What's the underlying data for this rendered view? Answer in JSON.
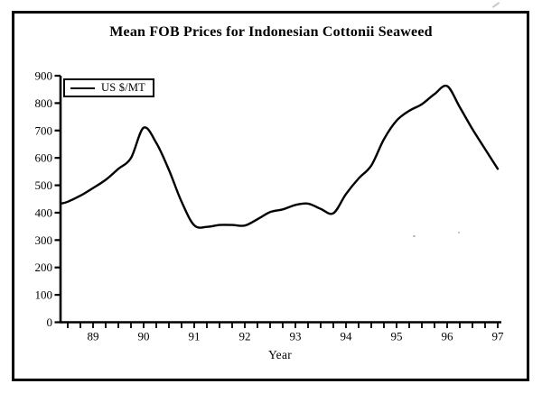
{
  "figure": {
    "title": "Mean FOB Prices for Indonesian Cottonii Seaweed"
  },
  "chart_data": {
    "type": "line",
    "title": "Mean FOB Prices for Indonesian Cottonii Seaweed",
    "xlabel": "Year",
    "ylabel": "",
    "legend": [
      "US $/MT"
    ],
    "legend_position": "top-left-inside",
    "grid": false,
    "line_color": "#000000",
    "xlim": [
      88.36,
      97.07
    ],
    "ylim": [
      0,
      900
    ],
    "y_ticks": [
      0,
      100,
      200,
      300,
      400,
      500,
      600,
      700,
      800,
      900
    ],
    "x_tick_years": [
      89,
      90,
      91,
      92,
      93,
      94,
      95,
      96,
      97
    ],
    "x_tick_labels": [
      "89",
      "90",
      "91",
      "92",
      "93",
      "94",
      "95",
      "96",
      "97"
    ],
    "minor_tick_interval_years": 0.25,
    "series": [
      {
        "name": "US $/MT",
        "x": [
          88.36,
          88.5,
          88.75,
          89.0,
          89.25,
          89.5,
          89.75,
          90.0,
          90.25,
          90.5,
          90.75,
          91.0,
          91.25,
          91.5,
          91.75,
          92.0,
          92.25,
          92.5,
          92.75,
          93.0,
          93.25,
          93.5,
          93.75,
          94.0,
          94.25,
          94.5,
          94.75,
          95.0,
          95.25,
          95.5,
          95.75,
          96.0,
          96.25,
          96.5,
          96.75,
          97.0
        ],
        "values": [
          433,
          440,
          462,
          490,
          520,
          560,
          600,
          710,
          655,
          556,
          440,
          354,
          348,
          355,
          355,
          353,
          376,
          402,
          412,
          428,
          433,
          414,
          398,
          468,
          525,
          572,
          668,
          736,
          772,
          796,
          833,
          862,
          785,
          705,
          632,
          560
        ]
      }
    ]
  }
}
